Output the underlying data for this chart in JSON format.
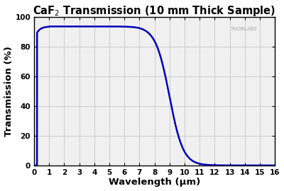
{
  "title": "CaF$_2$ Transmission (10 mm Thick Sample)",
  "xlabel": "Wavelength (μm)",
  "ylabel": "Transmission (%)",
  "xlim": [
    0,
    16
  ],
  "ylim": [
    0,
    100
  ],
  "xticks": [
    0,
    1,
    2,
    3,
    4,
    5,
    6,
    7,
    8,
    9,
    10,
    11,
    12,
    13,
    14,
    15,
    16
  ],
  "yticks": [
    0,
    20,
    40,
    60,
    80,
    100
  ],
  "line_color": "#0000bb",
  "line_width": 1.8,
  "bg_color": "#f0f0f0",
  "grid_color": "#cccccc",
  "watermark": "THORLABS",
  "title_fontsize": 10.5,
  "axis_label_fontsize": 9.5,
  "tick_fontsize": 7.5
}
